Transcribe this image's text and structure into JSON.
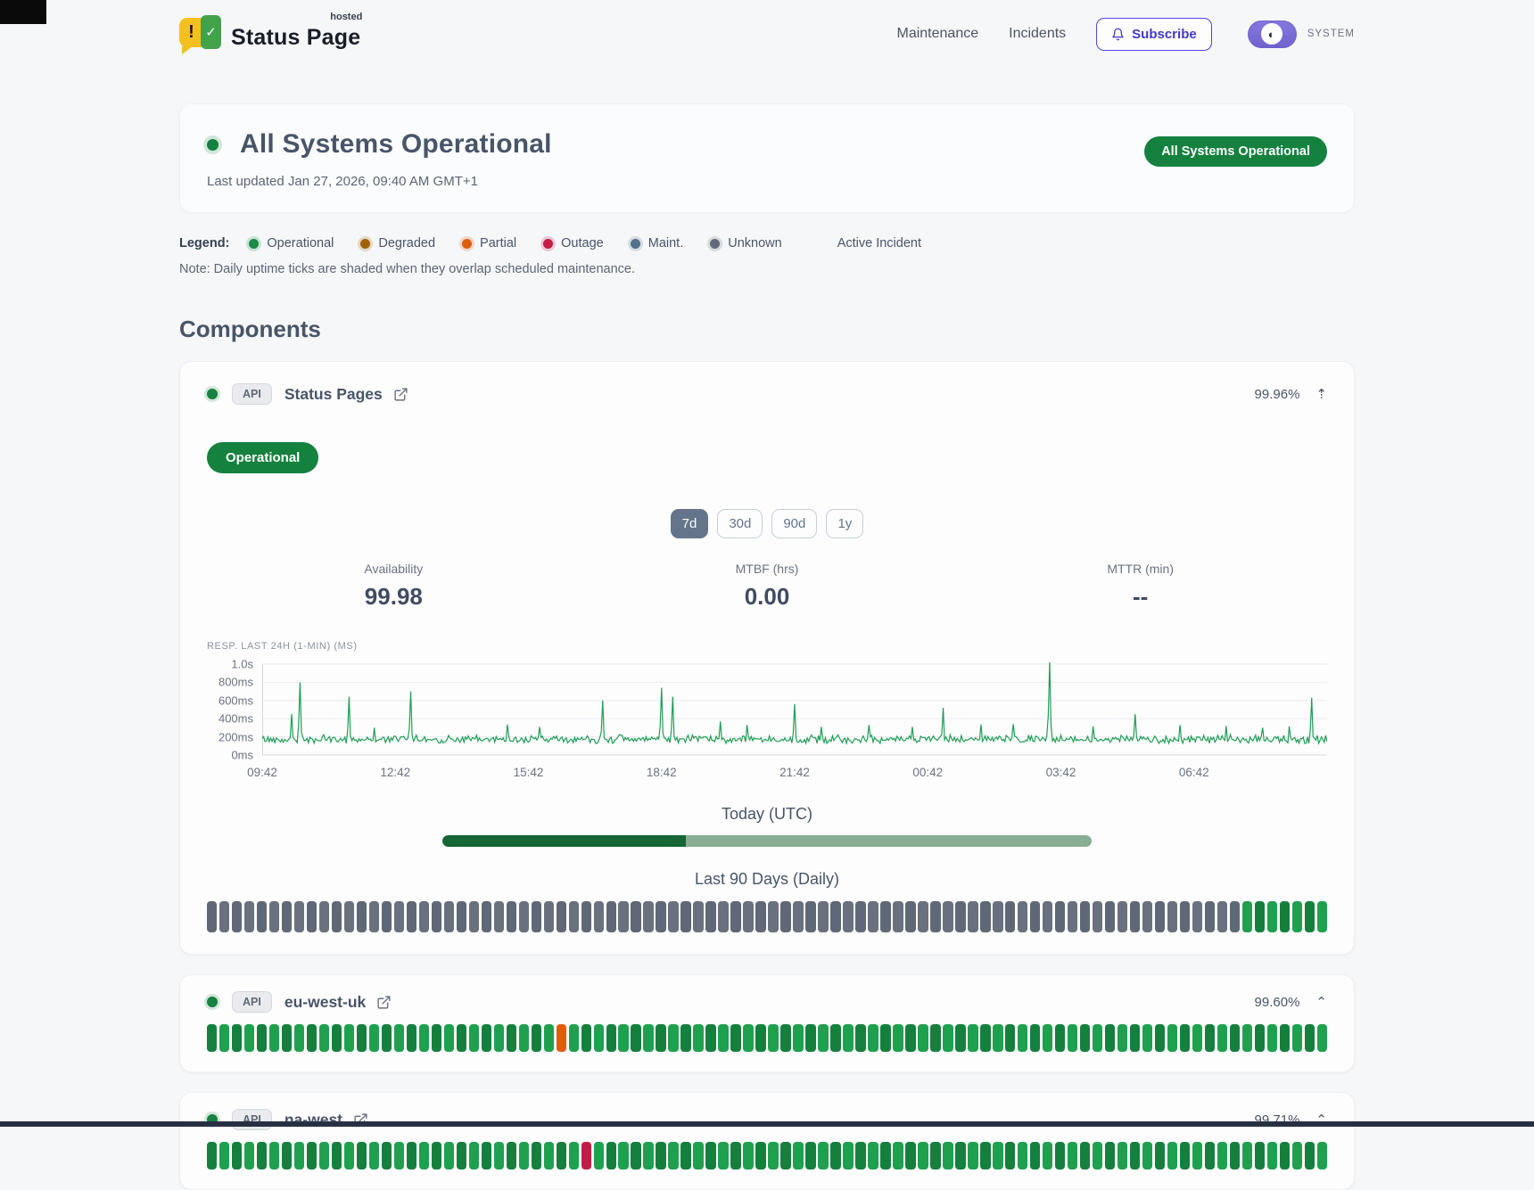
{
  "header": {
    "brand": "Status Page",
    "brand_superscript": "hosted",
    "nav_items": [
      "Maintenance",
      "Incidents"
    ],
    "subscribe_label": "Subscribe",
    "theme_toggle_label": "SYSTEM"
  },
  "hero": {
    "title": "All Systems Operational",
    "last_updated": "Last updated Jan 27, 2026, 09:40 AM GMT+1",
    "status_badge": "All Systems Operational"
  },
  "legend": {
    "label": "Legend:",
    "items": [
      {
        "name": "Operational",
        "color": "#1a8a44"
      },
      {
        "name": "Degraded",
        "color": "#a16207"
      },
      {
        "name": "Partial",
        "color": "#e05d10"
      },
      {
        "name": "Outage",
        "color": "#c21d45"
      },
      {
        "name": "Maint.",
        "color": "#53718a"
      },
      {
        "name": "Unknown",
        "color": "#616a78"
      }
    ],
    "active_incident": "Active Incident",
    "note": "Note: Daily uptime ticks are shaded when they overlap scheduled maintenance."
  },
  "components_section": {
    "heading": "Components",
    "detail": {
      "status_badge": "Operational",
      "ranges": [
        "7d",
        "30d",
        "90d",
        "1y"
      ],
      "selected_range": "7d",
      "stats": [
        {
          "label": "Availability",
          "value": "99.98"
        },
        {
          "label": "MTBF (hrs)",
          "value": "0.00"
        },
        {
          "label": "MTTR (min)",
          "value": "--"
        }
      ],
      "today_label": "Today (UTC)",
      "today_progress_pct": 37.5,
      "history_label": "Last 90 Days (Daily)"
    },
    "components": [
      {
        "tag": "API",
        "name": "Status Pages",
        "uptime": "99.96%",
        "toggle_icon": "⇡",
        "ticks": [
          {
            "count": 83,
            "status": "unknown"
          },
          {
            "count": 7,
            "status": "operational"
          }
        ]
      },
      {
        "tag": "API",
        "name": "eu-west-uk",
        "uptime": "99.60%",
        "toggle_icon": "⌃",
        "ticks": [
          {
            "count": 28,
            "status": "operational"
          },
          {
            "count": 1,
            "status": "partial"
          },
          {
            "count": 61,
            "status": "operational"
          }
        ]
      },
      {
        "tag": "API",
        "name": "na-west",
        "uptime": "99.71%",
        "toggle_icon": "⌃",
        "ticks": [
          {
            "count": 30,
            "status": "operational"
          },
          {
            "count": 1,
            "status": "outage"
          },
          {
            "count": 59,
            "status": "operational"
          }
        ]
      }
    ]
  },
  "chart_data": {
    "type": "line",
    "title": "RESP. LAST 24H (1-MIN) (MS)",
    "y_tick_labels": [
      "1.0s",
      "800ms",
      "600ms",
      "400ms",
      "200ms",
      "0ms"
    ],
    "y_range_ms": [
      0,
      1000
    ],
    "x_tick_labels": [
      "09:42",
      "12:42",
      "15:42",
      "18:42",
      "21:42",
      "00:42",
      "03:42",
      "06:42"
    ],
    "line_color": "#1f9d55",
    "baseline_ms": 172,
    "noise_ms": 55,
    "spikes": [
      [
        0.028,
        450
      ],
      [
        0.036,
        800
      ],
      [
        0.082,
        640
      ],
      [
        0.105,
        300
      ],
      [
        0.14,
        700
      ],
      [
        0.23,
        335
      ],
      [
        0.26,
        310
      ],
      [
        0.32,
        600
      ],
      [
        0.375,
        740
      ],
      [
        0.385,
        640
      ],
      [
        0.43,
        370
      ],
      [
        0.455,
        330
      ],
      [
        0.5,
        560
      ],
      [
        0.525,
        310
      ],
      [
        0.57,
        330
      ],
      [
        0.61,
        310
      ],
      [
        0.64,
        520
      ],
      [
        0.675,
        335
      ],
      [
        0.705,
        340
      ],
      [
        0.74,
        1020
      ],
      [
        0.78,
        315
      ],
      [
        0.82,
        450
      ],
      [
        0.862,
        330
      ],
      [
        0.905,
        320
      ],
      [
        0.94,
        300
      ],
      [
        0.965,
        315
      ],
      [
        0.985,
        630
      ]
    ]
  },
  "status_colors": {
    "operational": "#15803d",
    "operational_alt": "#1fa04e",
    "unknown": "#5f6876",
    "unknown_alt": "#69717f",
    "partial": "#e05d10",
    "outage": "#c21d45",
    "progress_done": "#166534",
    "progress_rest": "#8aae94"
  }
}
